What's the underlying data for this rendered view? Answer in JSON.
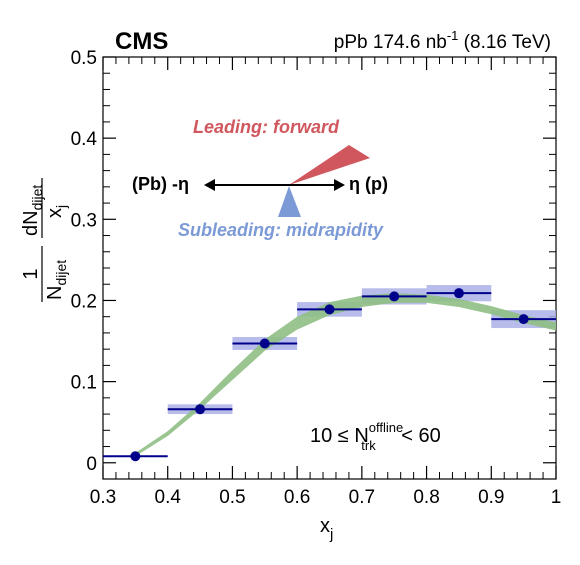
{
  "chart_data": {
    "type": "scatter",
    "experiment": "CMS",
    "luminosity_label": "pPb 174.6 nb",
    "luminosity_sup": "-1",
    "energy_label": " (8.16 TeV)",
    "xlabel_main": "x",
    "xlabel_sub": "j",
    "ylabel": {
      "frac_num": "1",
      "frac_den_main": "N",
      "frac_den_sub": "dijet",
      "deriv_num_main": "dN",
      "deriv_num_sub": "dijet",
      "deriv_den_main": "x",
      "deriv_den_sub": "j"
    },
    "xlim": [
      0.3,
      1.0
    ],
    "ylim": [
      -0.02,
      0.5
    ],
    "xticks": [
      "0.3",
      "0.4",
      "0.5",
      "0.6",
      "0.7",
      "0.8",
      "0.9",
      "1"
    ],
    "yticks": [
      "0",
      "0.1",
      "0.2",
      "0.3",
      "0.4",
      "0.5"
    ],
    "bins": [
      {
        "lo": 0.3,
        "hi": 0.4,
        "x": 0.35,
        "y": 0.008,
        "syst": 0.0
      },
      {
        "lo": 0.4,
        "hi": 0.5,
        "x": 0.45,
        "y": 0.066,
        "syst": 0.006
      },
      {
        "lo": 0.5,
        "hi": 0.6,
        "x": 0.55,
        "y": 0.147,
        "syst": 0.008
      },
      {
        "lo": 0.6,
        "hi": 0.7,
        "x": 0.65,
        "y": 0.189,
        "syst": 0.009
      },
      {
        "lo": 0.7,
        "hi": 0.8,
        "x": 0.75,
        "y": 0.205,
        "syst": 0.01
      },
      {
        "lo": 0.8,
        "hi": 0.9,
        "x": 0.85,
        "y": 0.209,
        "syst": 0.01
      },
      {
        "lo": 0.9,
        "hi": 1.0,
        "x": 0.95,
        "y": 0.177,
        "syst": 0.011
      }
    ],
    "model_band": {
      "x": [
        0.35,
        0.4,
        0.45,
        0.5,
        0.55,
        0.6,
        0.65,
        0.7,
        0.75,
        0.8,
        0.85,
        0.9,
        0.95,
        1.0
      ],
      "y": [
        0.01,
        0.036,
        0.07,
        0.108,
        0.145,
        0.172,
        0.19,
        0.199,
        0.203,
        0.202,
        0.197,
        0.188,
        0.177,
        0.168
      ],
      "half_width": [
        0.002,
        0.003,
        0.004,
        0.006,
        0.007,
        0.008,
        0.008,
        0.007,
        0.006,
        0.005,
        0.005,
        0.005,
        0.005,
        0.005
      ]
    },
    "selection_label": {
      "prefix": "10 ≤ N",
      "sup": "offline",
      "sub": "trk",
      "suffix": " < 60"
    },
    "diagram": {
      "leading_label": "Leading: forward",
      "subleading_label": "Subleading: midrapidity",
      "left_label": "(Pb) -η",
      "right_label": "η (p)"
    },
    "colors": {
      "marker": "#00008b",
      "syst_box": "#aab0e8",
      "model_band": "#8fbf85",
      "leading": "#d1575e",
      "subleading": "#7c9ad6"
    }
  }
}
